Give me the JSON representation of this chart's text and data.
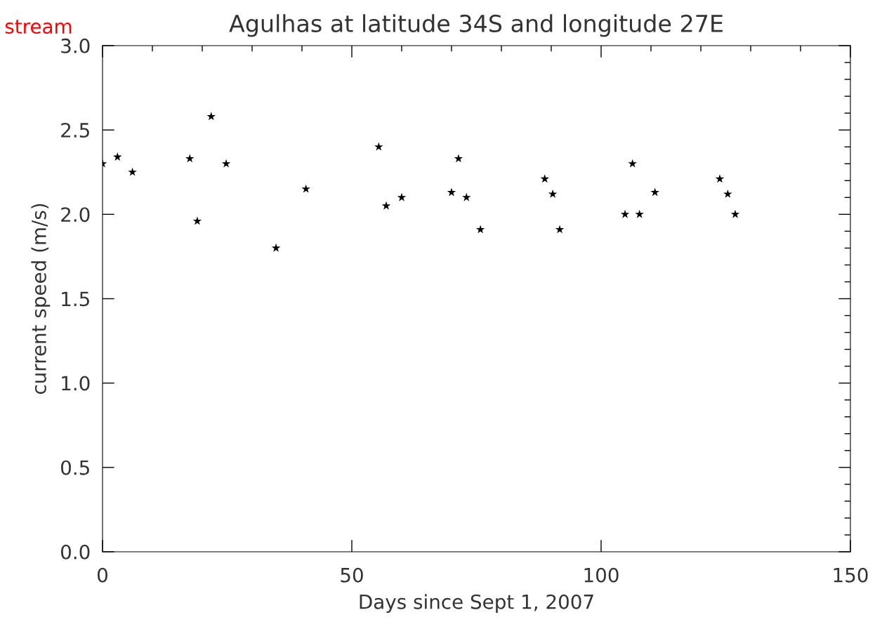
{
  "chart_data": {
    "type": "scatter",
    "title": "Agulhas at latitude 34S and longitude 27E",
    "xlabel": "Days since Sept 1, 2007",
    "ylabel": "current speed (m/s)",
    "annotations": [
      "stream"
    ],
    "x": [
      0,
      3,
      6,
      17.5,
      19,
      21.8,
      24.8,
      34.8,
      40.8,
      55.4,
      56.9,
      60,
      70,
      71.4,
      73,
      75.8,
      88.7,
      90.3,
      91.7,
      104.8,
      106.3,
      107.7,
      110.8,
      123.8,
      125.4,
      126.9
    ],
    "series": [
      {
        "color": "#000000",
        "values": [
          2.3,
          2.34,
          2.25,
          2.33,
          1.96,
          2.58,
          2.3,
          1.8,
          2.15,
          2.4,
          2.05,
          2.1,
          2.13,
          2.33,
          2.1,
          1.91,
          2.21,
          2.12,
          1.91,
          2.0,
          2.3,
          2.0,
          2.13,
          2.21,
          2.12,
          2.0
        ]
      }
    ],
    "xlim": [
      0,
      150
    ],
    "ylim": [
      0,
      3
    ],
    "xticks": [
      0,
      50,
      100,
      150
    ],
    "yticks": [
      {
        "value": 0,
        "label": "0.0"
      },
      0.5,
      {
        "value": 1,
        "label": "1.0"
      },
      1.5,
      {
        "value": 2,
        "label": "2.0"
      },
      2.5,
      {
        "value": 3,
        "label": "3.0"
      }
    ],
    "marker": "star",
    "grid": false,
    "legend": false
  }
}
